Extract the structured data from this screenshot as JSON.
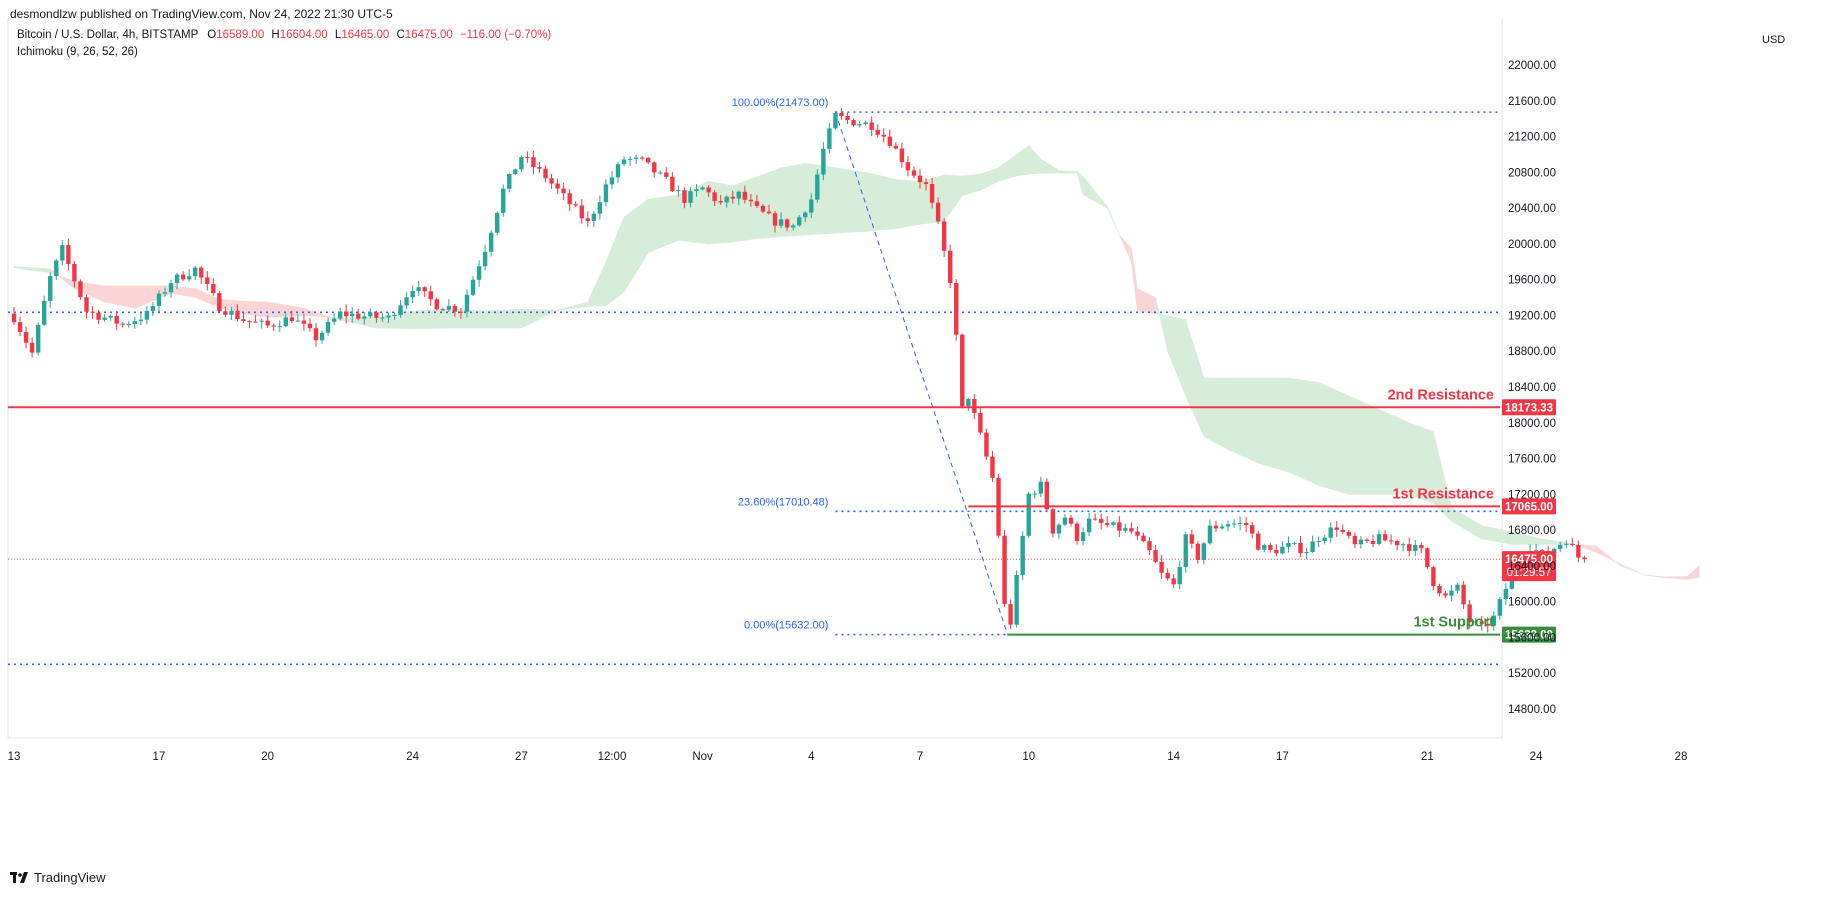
{
  "header": {
    "publisher_line": "desmondlzw published on TradingView.com, Nov 24, 2022 21:30 UTC-5",
    "symbol_title": "Bitcoin / U.S. Dollar, 4h, BITSTAMP",
    "ohlc": {
      "open_label": "O",
      "open": "16589.00",
      "high_label": "H",
      "high": "16604.00",
      "low_label": "L",
      "low": "16465.00",
      "close_label": "C",
      "close": "16475.00",
      "change": "−116.00 (−0.70%)"
    },
    "indicator": "Ichimoku (9, 26, 52, 26)",
    "currency": "USD"
  },
  "footer": {
    "brand": "TradingView"
  },
  "colors": {
    "up": "#26a69a",
    "down": "#f23645",
    "cloud_bull": "#d7ecd9",
    "cloud_bear": "#fbd5d5",
    "resistance": "#f23645",
    "support": "#388e3c",
    "fib": "#2962ff",
    "current_price_tag": "#f23645"
  },
  "chart_data": {
    "type": "candlestick",
    "timeframe": "4h",
    "y_axis": {
      "min": 14600,
      "max": 22300,
      "ticks": [
        "22000.00",
        "21600.00",
        "21200.00",
        "20800.00",
        "20400.00",
        "20000.00",
        "19600.00",
        "19200.00",
        "18800.00",
        "18400.00",
        "18000.00",
        "17600.00",
        "17200.00",
        "16800.00",
        "16400.00",
        "16000.00",
        "15600.00",
        "15200.00",
        "14800.00"
      ],
      "tick_values": [
        22000,
        21600,
        21200,
        20800,
        20400,
        20000,
        19600,
        19200,
        18800,
        18400,
        18000,
        17600,
        17200,
        16800,
        16400,
        16000,
        15600,
        15200,
        14800
      ]
    },
    "x_axis": {
      "labels": [
        "13",
        "17",
        "20",
        "24",
        "27",
        "12:00",
        "Nov",
        "4",
        "7",
        "10",
        "14",
        "17",
        "21",
        "24",
        "28"
      ],
      "label_index": [
        0,
        24,
        42,
        66,
        84,
        99,
        114,
        132,
        150,
        168,
        192,
        210,
        234,
        252,
        276
      ],
      "bars_total": 278
    },
    "anchors": [
      [
        0,
        19180
      ],
      [
        3,
        18780
      ],
      [
        6,
        19620
      ],
      [
        8,
        19940
      ],
      [
        12,
        19250
      ],
      [
        18,
        19100
      ],
      [
        22,
        19210
      ],
      [
        26,
        19580
      ],
      [
        30,
        19720
      ],
      [
        34,
        19300
      ],
      [
        38,
        19150
      ],
      [
        42,
        19080
      ],
      [
        46,
        19180
      ],
      [
        50,
        18950
      ],
      [
        54,
        19220
      ],
      [
        58,
        19190
      ],
      [
        62,
        19170
      ],
      [
        66,
        19520
      ],
      [
        70,
        19320
      ],
      [
        74,
        19270
      ],
      [
        78,
        19950
      ],
      [
        81,
        20600
      ],
      [
        84,
        20980
      ],
      [
        88,
        20750
      ],
      [
        92,
        20450
      ],
      [
        95,
        20230
      ],
      [
        98,
        20650
      ],
      [
        101,
        20950
      ],
      [
        104,
        20920
      ],
      [
        108,
        20700
      ],
      [
        111,
        20500
      ],
      [
        114,
        20620
      ],
      [
        117,
        20450
      ],
      [
        120,
        20550
      ],
      [
        123,
        20380
      ],
      [
        126,
        20250
      ],
      [
        129,
        20200
      ],
      [
        132,
        20500
      ],
      [
        134,
        21050
      ],
      [
        136,
        21430
      ],
      [
        138,
        21380
      ],
      [
        142,
        21330
      ],
      [
        145,
        21150
      ],
      [
        148,
        20850
      ],
      [
        151,
        20650
      ],
      [
        153,
        20200
      ],
      [
        155,
        19600
      ],
      [
        156,
        18950
      ],
      [
        157,
        18150
      ],
      [
        158,
        18300
      ],
      [
        160,
        17850
      ],
      [
        162,
        17380
      ],
      [
        163,
        16750
      ],
      [
        164,
        15950
      ],
      [
        165,
        15770
      ],
      [
        166,
        16250
      ],
      [
        168,
        17200
      ],
      [
        170,
        17300
      ],
      [
        172,
        16800
      ],
      [
        174,
        16950
      ],
      [
        176,
        16720
      ],
      [
        178,
        16900
      ],
      [
        181,
        16850
      ],
      [
        185,
        16780
      ],
      [
        188,
        16550
      ],
      [
        190,
        16300
      ],
      [
        192,
        16180
      ],
      [
        194,
        16700
      ],
      [
        196,
        16500
      ],
      [
        198,
        16820
      ],
      [
        201,
        16880
      ],
      [
        204,
        16860
      ],
      [
        206,
        16630
      ],
      [
        208,
        16560
      ],
      [
        211,
        16620
      ],
      [
        214,
        16580
      ],
      [
        216,
        16720
      ],
      [
        219,
        16840
      ],
      [
        222,
        16620
      ],
      [
        226,
        16700
      ],
      [
        230,
        16650
      ],
      [
        233,
        16560
      ],
      [
        235,
        16220
      ],
      [
        237,
        16050
      ],
      [
        239,
        16150
      ],
      [
        241,
        15780
      ],
      [
        243,
        15700
      ],
      [
        245,
        15820
      ],
      [
        247,
        16150
      ],
      [
        249,
        16480
      ],
      [
        251,
        16620
      ],
      [
        253,
        16520
      ],
      [
        255,
        16600
      ],
      [
        257,
        16700
      ],
      [
        259,
        16500
      ],
      [
        260,
        16475
      ]
    ],
    "ichimoku_cloud": {
      "span_a": [
        [
          0,
          19750
        ],
        [
          6,
          19720
        ],
        [
          10,
          19500
        ],
        [
          15,
          19350
        ],
        [
          20,
          19280
        ],
        [
          26,
          19450
        ],
        [
          30,
          19400
        ],
        [
          34,
          19290
        ],
        [
          38,
          19220
        ],
        [
          42,
          19180
        ],
        [
          48,
          19200
        ],
        [
          54,
          19170
        ],
        [
          60,
          19180
        ],
        [
          66,
          19250
        ],
        [
          72,
          19270
        ],
        [
          78,
          19250
        ],
        [
          84,
          19270
        ],
        [
          90,
          19260
        ],
        [
          95,
          19350
        ],
        [
          98,
          19800
        ],
        [
          101,
          20300
        ],
        [
          105,
          20500
        ],
        [
          110,
          20550
        ],
        [
          115,
          20700
        ],
        [
          119,
          20650
        ],
        [
          123,
          20750
        ],
        [
          127,
          20850
        ],
        [
          131,
          20900
        ],
        [
          136,
          20850
        ],
        [
          141,
          20800
        ],
        [
          146,
          20720
        ],
        [
          150,
          20700
        ],
        [
          154,
          20770
        ],
        [
          157,
          20760
        ],
        [
          160,
          20780
        ],
        [
          163,
          20850
        ],
        [
          166,
          21000
        ],
        [
          168,
          21100
        ],
        [
          170,
          20950
        ],
        [
          173,
          20820
        ],
        [
          176,
          20810
        ],
        [
          177,
          20750
        ],
        [
          181,
          20420
        ],
        [
          183,
          20100
        ],
        [
          185,
          19800
        ],
        [
          186,
          19250
        ],
        [
          189,
          19220
        ],
        [
          191,
          19200
        ],
        [
          194,
          19150
        ],
        [
          197,
          18500
        ],
        [
          201,
          18500
        ],
        [
          206,
          18500
        ],
        [
          211,
          18500
        ],
        [
          216,
          18450
        ],
        [
          221,
          18300
        ],
        [
          226,
          18150
        ],
        [
          231,
          18000
        ],
        [
          235,
          17900
        ],
        [
          238,
          17050
        ],
        [
          243,
          16850
        ],
        [
          248,
          16780
        ],
        [
          253,
          16700
        ],
        [
          258,
          16650
        ],
        [
          262,
          16550
        ],
        [
          266,
          16420
        ],
        [
          270,
          16300
        ],
        [
          273,
          16270
        ],
        [
          277,
          16250
        ],
        [
          279,
          16270
        ]
      ],
      "span_b": [
        [
          0,
          19730
        ],
        [
          6,
          19680
        ],
        [
          10,
          19580
        ],
        [
          15,
          19530
        ],
        [
          20,
          19530
        ],
        [
          26,
          19530
        ],
        [
          30,
          19500
        ],
        [
          34,
          19380
        ],
        [
          38,
          19360
        ],
        [
          42,
          19350
        ],
        [
          48,
          19280
        ],
        [
          54,
          19150
        ],
        [
          60,
          19060
        ],
        [
          66,
          19050
        ],
        [
          72,
          19060
        ],
        [
          78,
          19060
        ],
        [
          84,
          19060
        ],
        [
          90,
          19260
        ],
        [
          95,
          19300
        ],
        [
          98,
          19310
        ],
        [
          101,
          19460
        ],
        [
          105,
          19900
        ],
        [
          110,
          20040
        ],
        [
          115,
          20000
        ],
        [
          119,
          20020
        ],
        [
          123,
          20060
        ],
        [
          127,
          20080
        ],
        [
          131,
          20100
        ],
        [
          136,
          20120
        ],
        [
          141,
          20140
        ],
        [
          146,
          20170
        ],
        [
          150,
          20220
        ],
        [
          154,
          20250
        ],
        [
          157,
          20540
        ],
        [
          160,
          20600
        ],
        [
          163,
          20700
        ],
        [
          166,
          20760
        ],
        [
          168,
          20780
        ],
        [
          170,
          20790
        ],
        [
          173,
          20790
        ],
        [
          176,
          20790
        ],
        [
          177,
          20550
        ],
        [
          181,
          20400
        ],
        [
          183,
          20100
        ],
        [
          185,
          19950
        ],
        [
          186,
          19500
        ],
        [
          189,
          19400
        ],
        [
          191,
          18800
        ],
        [
          194,
          18300
        ],
        [
          197,
          17850
        ],
        [
          201,
          17700
        ],
        [
          206,
          17550
        ],
        [
          211,
          17450
        ],
        [
          216,
          17300
        ],
        [
          221,
          17200
        ],
        [
          226,
          17200
        ],
        [
          231,
          17200
        ],
        [
          235,
          17100
        ],
        [
          238,
          16900
        ],
        [
          243,
          16700
        ],
        [
          248,
          16640
        ],
        [
          253,
          16640
        ],
        [
          258,
          16640
        ],
        [
          262,
          16620
        ],
        [
          266,
          16400
        ],
        [
          270,
          16300
        ],
        [
          273,
          16280
        ],
        [
          277,
          16280
        ],
        [
          279,
          16400
        ]
      ]
    },
    "levels": [
      {
        "name": "2nd Resistance",
        "value": 18173.33,
        "label": "18173.33"
      },
      {
        "name": "1st Resistance",
        "value": 17065.0,
        "label": "17065.00"
      },
      {
        "name": "1st Support",
        "value": 15632.0,
        "label": "15632.00"
      }
    ],
    "dotted_lines": [
      21473,
      19235,
      15300
    ],
    "fibonacci": {
      "high": 21473,
      "low": 15632,
      "levels": [
        {
          "text": "100.00%(21473.00)",
          "value": 21473
        },
        {
          "text": "23.60%(17010.48)",
          "value": 17010.48
        },
        {
          "text": "0.00%(15632.00)",
          "value": 15632
        }
      ]
    },
    "current_price": {
      "value": 16475.0,
      "label": "16475.00",
      "countdown": "01:29:57"
    }
  }
}
